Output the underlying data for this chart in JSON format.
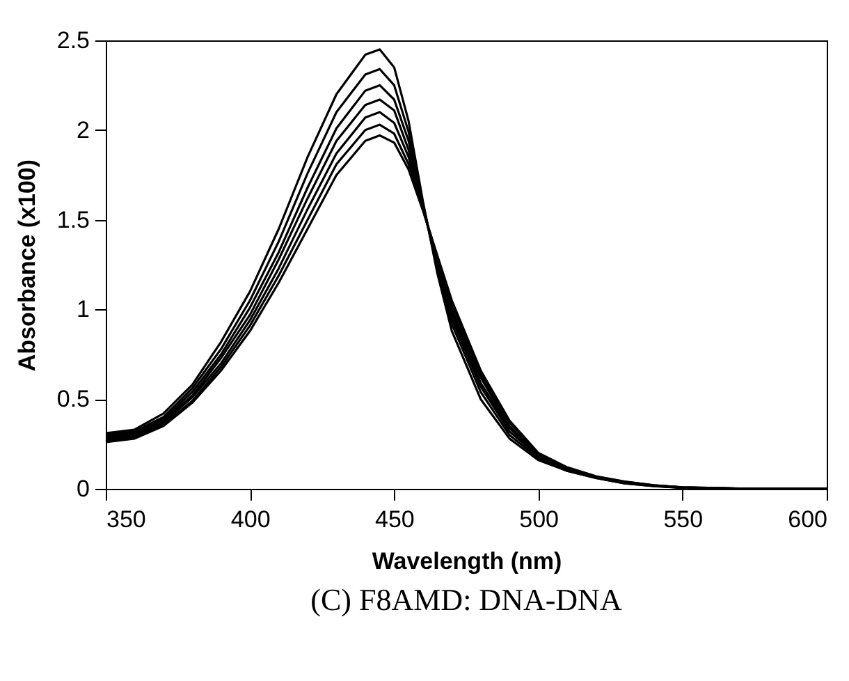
{
  "chart_data": {
    "type": "line",
    "title": "(C) F8AMD: DNA-DNA",
    "xlabel": "Wavelength (nm)",
    "ylabel": "Absorbance (x100)",
    "x": [
      350,
      360,
      370,
      380,
      390,
      400,
      410,
      420,
      430,
      440,
      445,
      450,
      455,
      460,
      465,
      470,
      480,
      490,
      500,
      510,
      520,
      530,
      540,
      550,
      575,
      600
    ],
    "series": [
      {
        "color": "#000000",
        "values": [
          0.31,
          0.33,
          0.42,
          0.58,
          0.82,
          1.1,
          1.45,
          1.85,
          2.2,
          2.42,
          2.45,
          2.35,
          2.05,
          1.6,
          1.2,
          0.88,
          0.5,
          0.28,
          0.16,
          0.1,
          0.06,
          0.03,
          0.015,
          0.005,
          0,
          0
        ]
      },
      {
        "color": "#000000",
        "values": [
          0.3,
          0.32,
          0.4,
          0.56,
          0.78,
          1.05,
          1.38,
          1.76,
          2.1,
          2.31,
          2.34,
          2.25,
          1.99,
          1.59,
          1.22,
          0.92,
          0.54,
          0.3,
          0.17,
          0.1,
          0.06,
          0.03,
          0.016,
          0.006,
          0,
          0
        ]
      },
      {
        "color": "#000000",
        "values": [
          0.29,
          0.31,
          0.39,
          0.54,
          0.75,
          1.01,
          1.32,
          1.68,
          2.01,
          2.22,
          2.25,
          2.17,
          1.94,
          1.58,
          1.24,
          0.95,
          0.57,
          0.32,
          0.18,
          0.11,
          0.064,
          0.034,
          0.017,
          0.006,
          0,
          0
        ]
      },
      {
        "color": "#000000",
        "values": [
          0.28,
          0.3,
          0.38,
          0.52,
          0.73,
          0.97,
          1.28,
          1.62,
          1.94,
          2.14,
          2.17,
          2.11,
          1.89,
          1.57,
          1.26,
          0.98,
          0.59,
          0.34,
          0.18,
          0.11,
          0.066,
          0.036,
          0.018,
          0.007,
          0,
          0
        ]
      },
      {
        "color": "#000000",
        "values": [
          0.27,
          0.29,
          0.37,
          0.51,
          0.7,
          0.94,
          1.23,
          1.56,
          1.87,
          2.07,
          2.1,
          2.04,
          1.85,
          1.56,
          1.27,
          1,
          0.62,
          0.35,
          0.19,
          0.115,
          0.067,
          0.037,
          0.019,
          0.007,
          0,
          0
        ]
      },
      {
        "color": "#000000",
        "values": [
          0.266,
          0.286,
          0.359,
          0.49,
          0.68,
          0.91,
          1.19,
          1.5,
          1.81,
          2,
          2.03,
          1.98,
          1.81,
          1.56,
          1.29,
          1.03,
          0.64,
          0.37,
          0.195,
          0.118,
          0.069,
          0.039,
          0.019,
          0.008,
          0,
          0
        ]
      },
      {
        "color": "#000000",
        "values": [
          0.26,
          0.28,
          0.35,
          0.48,
          0.66,
          0.88,
          1.15,
          1.45,
          1.75,
          1.94,
          1.97,
          1.93,
          1.78,
          1.55,
          1.3,
          1.05,
          0.66,
          0.38,
          0.2,
          0.12,
          0.07,
          0.04,
          0.02,
          0.008,
          0,
          0
        ]
      }
    ],
    "xlim": [
      350,
      600
    ],
    "xticks": [
      350,
      400,
      450,
      500,
      550,
      600
    ],
    "ylim": [
      0,
      2.5
    ],
    "yticks": [
      0,
      0.5,
      1,
      1.5,
      2,
      2.5
    ],
    "grid": false,
    "marker": "none",
    "line_style": "solid"
  }
}
